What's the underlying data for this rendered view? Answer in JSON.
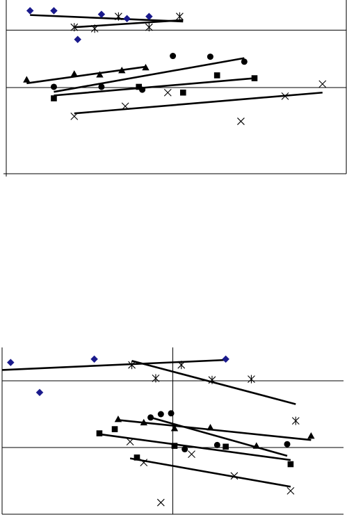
{
  "colors": {
    "diamond": "#1a1a8c",
    "ink": "#000000",
    "background": "#ffffff"
  },
  "chart_data": [
    {
      "type": "scatter",
      "title": "",
      "xlabel": "",
      "ylabel": "",
      "xlim": [
        0,
        10
      ],
      "ylim": [
        -6,
        6
      ],
      "grid": false,
      "legend": "none",
      "reference_lines": {
        "y_zero": 0,
        "y_upper": 4
      },
      "series": [
        {
          "marker": "diamond",
          "points": [
            [
              0.7,
              5.35
            ],
            [
              1.4,
              5.35
            ],
            [
              2.8,
              5.1
            ],
            [
              3.55,
              4.8
            ],
            [
              4.2,
              4.95
            ],
            [
              2.1,
              3.35
            ]
          ],
          "trend": [
            [
              0.7,
              5.05
            ],
            [
              5.2,
              4.6
            ]
          ]
        },
        {
          "marker": "star",
          "points": [
            [
              3.3,
              4.95
            ],
            [
              5.1,
              4.95
            ],
            [
              2.0,
              4.2
            ],
            [
              4.2,
              4.2
            ],
            [
              2.6,
              4.1
            ]
          ],
          "trend": [
            [
              2.0,
              4.2
            ],
            [
              5.2,
              4.7
            ]
          ]
        },
        {
          "marker": "circle",
          "points": [
            [
              4.9,
              2.2
            ],
            [
              6.0,
              2.15
            ],
            [
              7.0,
              1.8
            ],
            [
              1.4,
              0.05
            ],
            [
              2.8,
              0.05
            ],
            [
              4.0,
              -0.15
            ]
          ],
          "trend": [
            [
              1.4,
              -0.3
            ],
            [
              7.0,
              2.05
            ]
          ]
        },
        {
          "marker": "triangle",
          "points": [
            [
              0.6,
              0.55
            ],
            [
              2.0,
              0.95
            ],
            [
              2.75,
              0.9
            ],
            [
              3.4,
              1.2
            ],
            [
              4.1,
              1.4
            ]
          ],
          "trend": [
            [
              0.6,
              0.3
            ],
            [
              4.1,
              1.45
            ]
          ]
        },
        {
          "marker": "square",
          "points": [
            [
              6.2,
              0.85
            ],
            [
              7.3,
              0.65
            ],
            [
              3.9,
              0.05
            ],
            [
              5.2,
              -0.35
            ],
            [
              1.4,
              -0.75
            ]
          ],
          "trend": [
            [
              1.4,
              -0.55
            ],
            [
              7.3,
              0.65
            ]
          ]
        },
        {
          "marker": "cross",
          "points": [
            [
              4.75,
              -0.35
            ],
            [
              9.3,
              0.25
            ],
            [
              8.2,
              -0.6
            ],
            [
              3.5,
              -1.3
            ],
            [
              2.0,
              -2.0
            ],
            [
              6.9,
              -2.35
            ]
          ],
          "trend": [
            [
              2.0,
              -1.8
            ],
            [
              9.3,
              -0.35
            ]
          ]
        }
      ]
    },
    {
      "type": "scatter",
      "title": "",
      "xlabel": "",
      "ylabel": "",
      "xlim": [
        -5,
        5
      ],
      "ylim": [
        -4,
        6
      ],
      "grid": false,
      "legend": "none",
      "reference_lines": {
        "x_zero": 0,
        "y_zero": 0,
        "y_upper": 4
      },
      "series": [
        {
          "marker": "diamond",
          "points": [
            [
              -4.75,
              5.1
            ],
            [
              -2.3,
              5.3
            ],
            [
              1.55,
              5.3
            ],
            [
              -3.9,
              3.3
            ]
          ],
          "trend": [
            [
              -5.0,
              4.65
            ],
            [
              1.55,
              5.25
            ]
          ]
        },
        {
          "marker": "star",
          "points": [
            [
              -1.2,
              4.95
            ],
            [
              0.25,
              4.95
            ],
            [
              -0.5,
              4.15
            ],
            [
              1.15,
              4.05
            ],
            [
              2.3,
              4.1
            ],
            [
              3.6,
              1.6
            ]
          ],
          "trend": [
            [
              -1.2,
              5.2
            ],
            [
              3.6,
              2.6
            ]
          ]
        },
        {
          "marker": "circle",
          "points": [
            [
              -0.65,
              1.8
            ],
            [
              -0.35,
              2.0
            ],
            [
              -0.05,
              2.05
            ],
            [
              0.35,
              -0.1
            ],
            [
              1.3,
              0.15
            ],
            [
              3.35,
              0.2
            ]
          ],
          "trend": [
            [
              -0.65,
              1.8
            ],
            [
              3.35,
              -0.5
            ]
          ]
        },
        {
          "marker": "triangle",
          "points": [
            [
              -1.6,
              1.7
            ],
            [
              -0.85,
              1.5
            ],
            [
              0.05,
              1.15
            ],
            [
              1.1,
              1.2
            ],
            [
              2.45,
              0.1
            ],
            [
              4.05,
              0.7
            ]
          ],
          "trend": [
            [
              -1.6,
              1.65
            ],
            [
              4.05,
              0.45
            ]
          ]
        },
        {
          "marker": "square",
          "points": [
            [
              -2.15,
              0.85
            ],
            [
              -1.7,
              1.1
            ],
            [
              0.05,
              0.1
            ],
            [
              1.55,
              0.05
            ],
            [
              -1.05,
              -0.6
            ],
            [
              3.45,
              -1.0
            ]
          ],
          "trend": [
            [
              -2.15,
              0.8
            ],
            [
              3.45,
              -0.75
            ]
          ]
        },
        {
          "marker": "cross",
          "points": [
            [
              -1.25,
              0.35
            ],
            [
              -0.85,
              -0.9
            ],
            [
              0.55,
              -0.4
            ],
            [
              1.8,
              -1.7
            ],
            [
              -0.35,
              -3.3
            ],
            [
              3.45,
              -2.6
            ]
          ],
          "trend": [
            [
              -1.25,
              -0.65
            ],
            [
              3.45,
              -2.35
            ]
          ]
        }
      ]
    }
  ]
}
